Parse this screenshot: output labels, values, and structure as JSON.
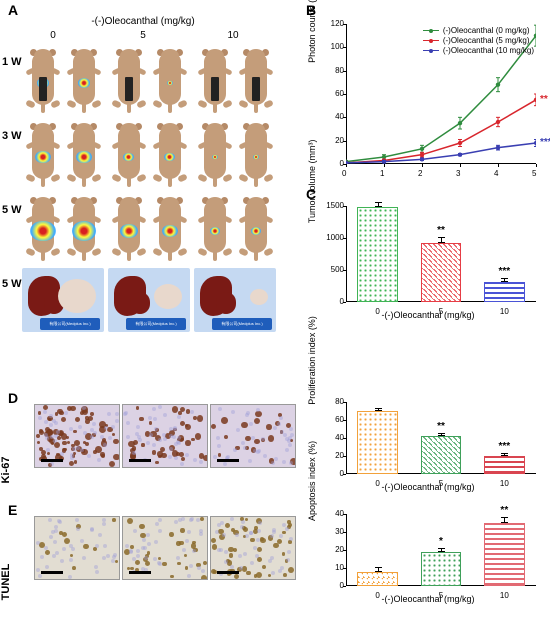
{
  "panelA": {
    "letter": "A",
    "title": "-(-)Oleocanthal (mg/kg)",
    "doses": [
      "0",
      "5",
      "10"
    ],
    "row_labels": [
      "1 W",
      "3 W",
      "5 W",
      "5 W"
    ],
    "mouse_body_color": "#c49d7a",
    "signal_sizes": [
      [
        12,
        12,
        6,
        6,
        0,
        4
      ],
      [
        16,
        16,
        11,
        11,
        6,
        6
      ],
      [
        26,
        24,
        18,
        16,
        10,
        10
      ]
    ],
    "black_bar_positions": [
      0,
      2,
      4,
      5
    ],
    "liver_color": "#7a1a15",
    "tumor_color": "#e8d8cc",
    "tumor_sizes": [
      38,
      28,
      18
    ],
    "tumor_pkg_text": "有限公司(Medplus Inc.)",
    "tray_bg": "#c5d9f2"
  },
  "chartB": {
    "letter": "B",
    "ylabel": "Photon counts (x10⁶)",
    "ylim": [
      0,
      120
    ],
    "ytick_step": 20,
    "xlim": [
      0,
      5
    ],
    "xtick_step": 1,
    "series": [
      {
        "label": "(-)Oleocanthal (0 mg/kg)",
        "color": "#2f8c3e",
        "y": [
          2,
          6,
          13,
          35,
          68,
          110
        ],
        "err": [
          1,
          2,
          3,
          5,
          6,
          9
        ],
        "sig": ""
      },
      {
        "label": "(-)Oleocanthal (5 mg/kg)",
        "color": "#d8262d",
        "y": [
          1,
          3,
          8,
          18,
          36,
          55
        ],
        "err": [
          1,
          1,
          2,
          3,
          4,
          5
        ],
        "sig": "**"
      },
      {
        "label": "(-)Oleocanthal (10 mg/kg)",
        "color": "#3a3fb2",
        "y": [
          1,
          2,
          4,
          8,
          14,
          18
        ],
        "err": [
          0,
          1,
          1,
          1,
          2,
          3
        ],
        "sig": "***"
      }
    ]
  },
  "chartC": {
    "letter": "C",
    "ylabel": "Tumor volume (mm³)",
    "ylim": [
      0,
      1500
    ],
    "ytick_step": 500,
    "xlabel": "-(-)Oleocanthal (mg/kg)",
    "categories": [
      "0",
      "5",
      "10"
    ],
    "bars": [
      {
        "value": 1480,
        "err": 80,
        "color": "#40b455",
        "pattern": "dots",
        "sig": ""
      },
      {
        "value": 920,
        "err": 90,
        "color": "#e63d45",
        "pattern": "hatch",
        "sig": "**"
      },
      {
        "value": 310,
        "err": 60,
        "color": "#4a54d6",
        "pattern": "lines",
        "sig": "***"
      }
    ]
  },
  "panelD": {
    "letter": "D",
    "row_label": "Ki-67",
    "histo_base": "#dcd2e4",
    "nuc_color": "#7a3a1e",
    "nuc_counts": [
      80,
      45,
      22
    ],
    "chart": {
      "ylabel": "Proliferation index (%)",
      "ylim": [
        0,
        80
      ],
      "ytick_step": 20,
      "xlabel": "-(-)Oleocanthal (mg/kg)",
      "categories": [
        "0",
        "5",
        "10"
      ],
      "bars": [
        {
          "value": 70,
          "err": 3,
          "color": "#f2a13a",
          "pattern": "dots",
          "sig": ""
        },
        {
          "value": 42,
          "err": 4,
          "color": "#3fa05a",
          "pattern": "hatch",
          "sig": "**"
        },
        {
          "value": 20,
          "err": 3,
          "color": "#d94550",
          "pattern": "lines",
          "sig": "***"
        }
      ]
    }
  },
  "panelE": {
    "letter": "E",
    "row_label": "TUNEL",
    "histo_base": "#e2ddd2",
    "nuc_color": "#8a6a2a",
    "nuc_counts": [
      12,
      30,
      50
    ],
    "chart": {
      "ylabel": "Apoptosis index (%)",
      "ylim": [
        0,
        40
      ],
      "ytick_step": 10,
      "xlabel": "-(-)Oleocanthal (mg/kg)",
      "categories": [
        "0",
        "5",
        "10"
      ],
      "bars": [
        {
          "value": 8,
          "err": 2.5,
          "color": "#f2a13a",
          "pattern": "hatch-wide",
          "sig": ""
        },
        {
          "value": 19,
          "err": 2,
          "color": "#3fa05a",
          "pattern": "dots",
          "sig": "*"
        },
        {
          "value": 35,
          "err": 3.5,
          "color": "#e26a73",
          "pattern": "lines",
          "sig": "**"
        }
      ]
    }
  }
}
